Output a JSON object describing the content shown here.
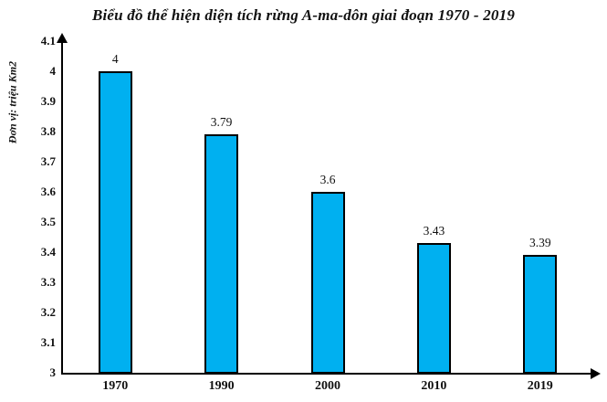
{
  "title": "Biểu đồ thể hiện diện tích rừng A-ma-dôn giai đoạn 1970 - 2019",
  "y_axis_unit": "Đơn vị: triệu Km2",
  "colors": {
    "bar_fill": "#00B0F0",
    "bar_border": "#000000",
    "axis": "#000000",
    "text": "#111111",
    "background": "#FFFFFF"
  },
  "chart_data": {
    "type": "bar",
    "title": "Biểu đồ thể hiện diện tích rừng A-ma-dôn giai đoạn 1970 - 2019",
    "ylabel": "Đơn vị: triệu Km2",
    "xlabel": "",
    "categories": [
      "1970",
      "1990",
      "2000",
      "2010",
      "2019"
    ],
    "values": [
      4,
      3.79,
      3.6,
      3.43,
      3.39
    ],
    "value_labels": [
      "4",
      "3.79",
      "3.6",
      "3.43",
      "3.39"
    ],
    "ylim": [
      3,
      4.1
    ],
    "ytick_values": [
      3,
      3.1,
      3.2,
      3.3,
      3.4,
      3.5,
      3.6,
      3.7,
      3.8,
      3.9,
      4,
      4.1
    ],
    "ytick_labels": [
      "3",
      "3.1",
      "3.2",
      "3.3",
      "3.4",
      "3.5",
      "3.6",
      "3.7",
      "3.8",
      "3.9",
      "4",
      "4.1"
    ],
    "grid": false,
    "legend_position": "none",
    "axis_arrows": true
  }
}
